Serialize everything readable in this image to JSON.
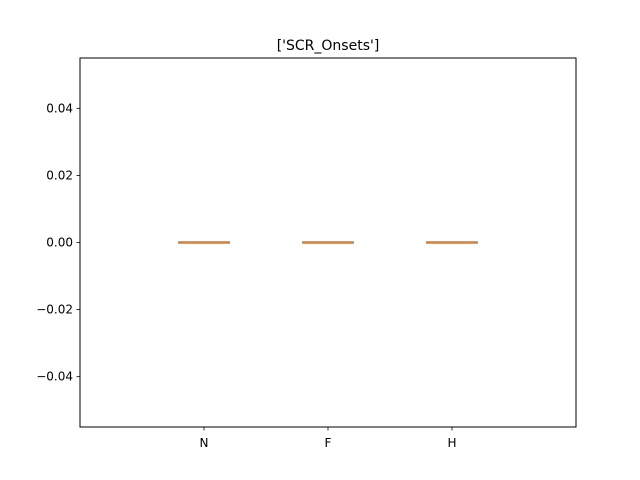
{
  "chart_data": {
    "type": "box",
    "title": "['SCR_Onsets']",
    "categories": [
      "N",
      "F",
      "H"
    ],
    "series": [
      {
        "values": [
          0.0,
          0.0,
          0.0
        ]
      }
    ],
    "boxes": [
      {
        "category": "N",
        "min": 0.0,
        "q1": 0.0,
        "median": 0.0,
        "q3": 0.0,
        "max": 0.0
      },
      {
        "category": "F",
        "min": 0.0,
        "q1": 0.0,
        "median": 0.0,
        "q3": 0.0,
        "max": 0.0
      },
      {
        "category": "H",
        "min": 0.0,
        "q1": 0.0,
        "median": 0.0,
        "q3": 0.0,
        "max": 0.0
      }
    ],
    "ylim": [
      -0.055,
      0.055
    ],
    "yticks": [
      -0.04,
      -0.02,
      0.0,
      0.02,
      0.04
    ],
    "ytick_labels": [
      "−0.04",
      "−0.02",
      "0.00",
      "0.02",
      "0.04"
    ],
    "xlabel": "",
    "ylabel": "",
    "grid": false,
    "colors": {
      "box": "#000000",
      "median": "#ff7f0e"
    }
  }
}
